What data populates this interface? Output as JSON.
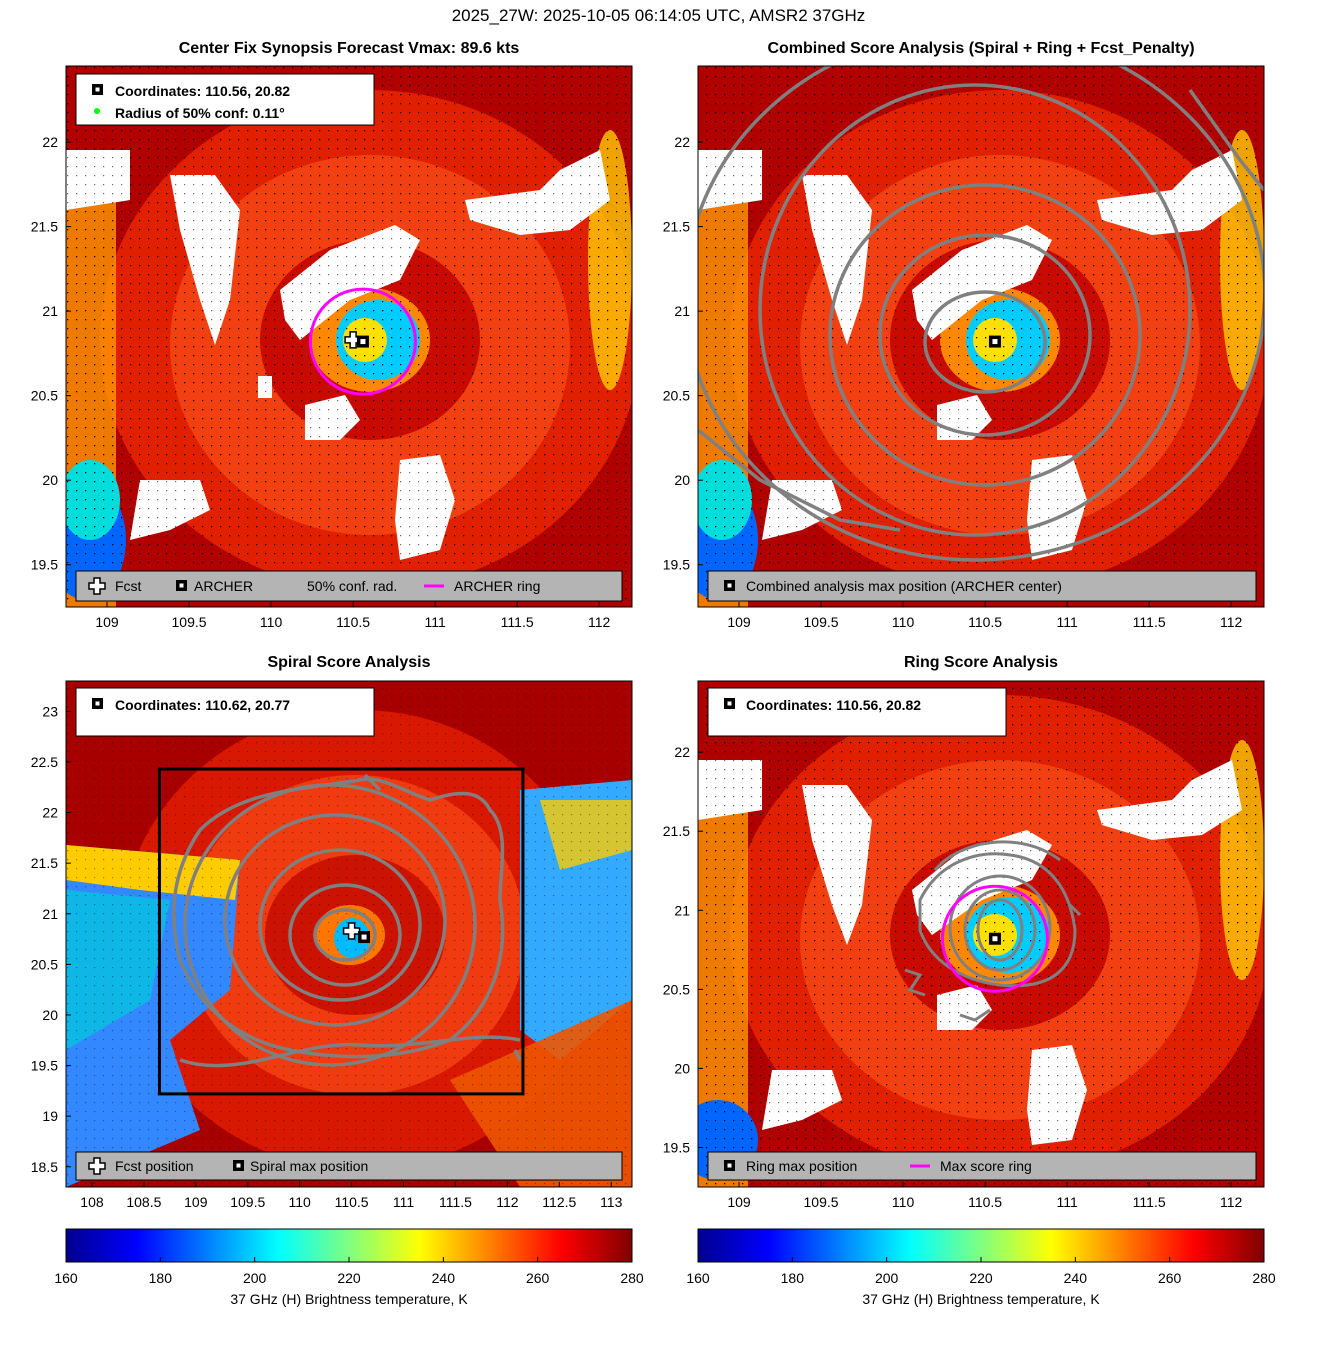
{
  "suptitle": "2025_27W: 2025-10-05 06:14:05 UTC, AMSR2 37GHz",
  "colors": {
    "ring": "#ff00ff",
    "contour": "#808080",
    "legend_bg": "#b4b4b4",
    "box": "#000000",
    "conf_dot": "#00ff00"
  },
  "colorbar": {
    "label": "37 GHz (H) Brightness temperature, K",
    "ticks": [
      "160",
      "180",
      "200",
      "220",
      "240",
      "260",
      "280"
    ],
    "range": [
      160,
      280
    ]
  },
  "panels": {
    "synopsis": {
      "title": "Center Fix Synopsis      Forecast Vmax: 89.6 kts",
      "info_line1": "Coordinates: 110.56, 20.82",
      "info_line2": "Radius of 50% conf: 0.11°",
      "legend": {
        "fcst": "Fcst",
        "archer": "ARCHER",
        "conf": "50% conf. rad.",
        "ring": "ARCHER ring"
      }
    },
    "combined": {
      "title": "Combined Score Analysis (Spiral + Ring + Fcst_Penalty)",
      "legend": {
        "max": "Combined analysis max position (ARCHER center)"
      }
    },
    "spiral": {
      "title": "Spiral Score Analysis",
      "info_line1": "Coordinates: 110.62, 20.77",
      "legend": {
        "fcst": "Fcst position",
        "max": "Spiral max position"
      }
    },
    "ring": {
      "title": "Ring Score Analysis",
      "info_line1": "Coordinates: 110.56, 20.82",
      "legend": {
        "max": "Ring max position",
        "ring": "Max score ring"
      }
    }
  },
  "chart_data": [
    {
      "id": "synopsis",
      "type": "heatmap",
      "title": "Center Fix Synopsis      Forecast Vmax: 89.6 kts",
      "xlim": [
        108.75,
        112.2
      ],
      "ylim": [
        19.25,
        22.45
      ],
      "xticks": [
        "109",
        "109.5",
        "110",
        "110.5",
        "111",
        "111.5",
        "112"
      ],
      "xtick_values": [
        109,
        109.5,
        110,
        110.5,
        111,
        111.5,
        112
      ],
      "yticks": [
        "19.5",
        "20",
        "20.5",
        "21",
        "21.5",
        "22"
      ],
      "ytick_values": [
        19.5,
        20,
        20.5,
        21,
        21.5,
        22
      ],
      "archer_center": [
        110.56,
        20.82
      ],
      "fcst_position": [
        110.5,
        20.83
      ],
      "ring_radius_deg": 0.32,
      "conf_radius_deg": 0.11
    },
    {
      "id": "combined",
      "type": "heatmap",
      "title": "Combined Score Analysis (Spiral + Ring + Fcst_Penalty)",
      "xlim": [
        108.75,
        112.2
      ],
      "ylim": [
        19.25,
        22.45
      ],
      "xticks": [
        "109",
        "109.5",
        "110",
        "110.5",
        "111",
        "111.5",
        "112"
      ],
      "xtick_values": [
        109,
        109.5,
        110,
        110.5,
        111,
        111.5,
        112
      ],
      "yticks": [
        "19.5",
        "20",
        "20.5",
        "21",
        "21.5",
        "22"
      ],
      "ytick_values": [
        19.5,
        20,
        20.5,
        21,
        21.5,
        22
      ],
      "archer_center": [
        110.56,
        20.82
      ]
    },
    {
      "id": "spiral",
      "type": "heatmap",
      "title": "Spiral Score Analysis",
      "xlim": [
        107.75,
        113.2
      ],
      "ylim": [
        18.3,
        23.3
      ],
      "xticks": [
        "108",
        "108.5",
        "109",
        "109.5",
        "110",
        "110.5",
        "111",
        "111.5",
        "112",
        "112.5",
        "113"
      ],
      "xtick_values": [
        108,
        108.5,
        109,
        109.5,
        110,
        110.5,
        111,
        111.5,
        112,
        112.5,
        113
      ],
      "yticks": [
        "18.5",
        "19",
        "19.5",
        "20",
        "20.5",
        "21",
        "21.5",
        "22",
        "22.5",
        "23"
      ],
      "ytick_values": [
        18.5,
        19,
        19.5,
        20,
        20.5,
        21,
        21.5,
        22,
        22.5,
        23
      ],
      "spiral_max": [
        110.62,
        20.77
      ],
      "fcst_position": [
        110.5,
        20.83
      ],
      "search_box": [
        108.65,
        19.22,
        112.15,
        22.43
      ]
    },
    {
      "id": "ring",
      "type": "heatmap",
      "title": "Ring Score Analysis",
      "xlim": [
        108.75,
        112.2
      ],
      "ylim": [
        19.25,
        22.45
      ],
      "xticks": [
        "109",
        "109.5",
        "110",
        "110.5",
        "111",
        "111.5",
        "112"
      ],
      "xtick_values": [
        109,
        109.5,
        110,
        110.5,
        111,
        111.5,
        112
      ],
      "yticks": [
        "19.5",
        "20",
        "20.5",
        "21",
        "21.5",
        "22"
      ],
      "ytick_values": [
        19.5,
        20,
        20.5,
        21,
        21.5,
        22
      ],
      "ring_max": [
        110.56,
        20.82
      ],
      "ring_radius_deg": 0.32
    }
  ]
}
